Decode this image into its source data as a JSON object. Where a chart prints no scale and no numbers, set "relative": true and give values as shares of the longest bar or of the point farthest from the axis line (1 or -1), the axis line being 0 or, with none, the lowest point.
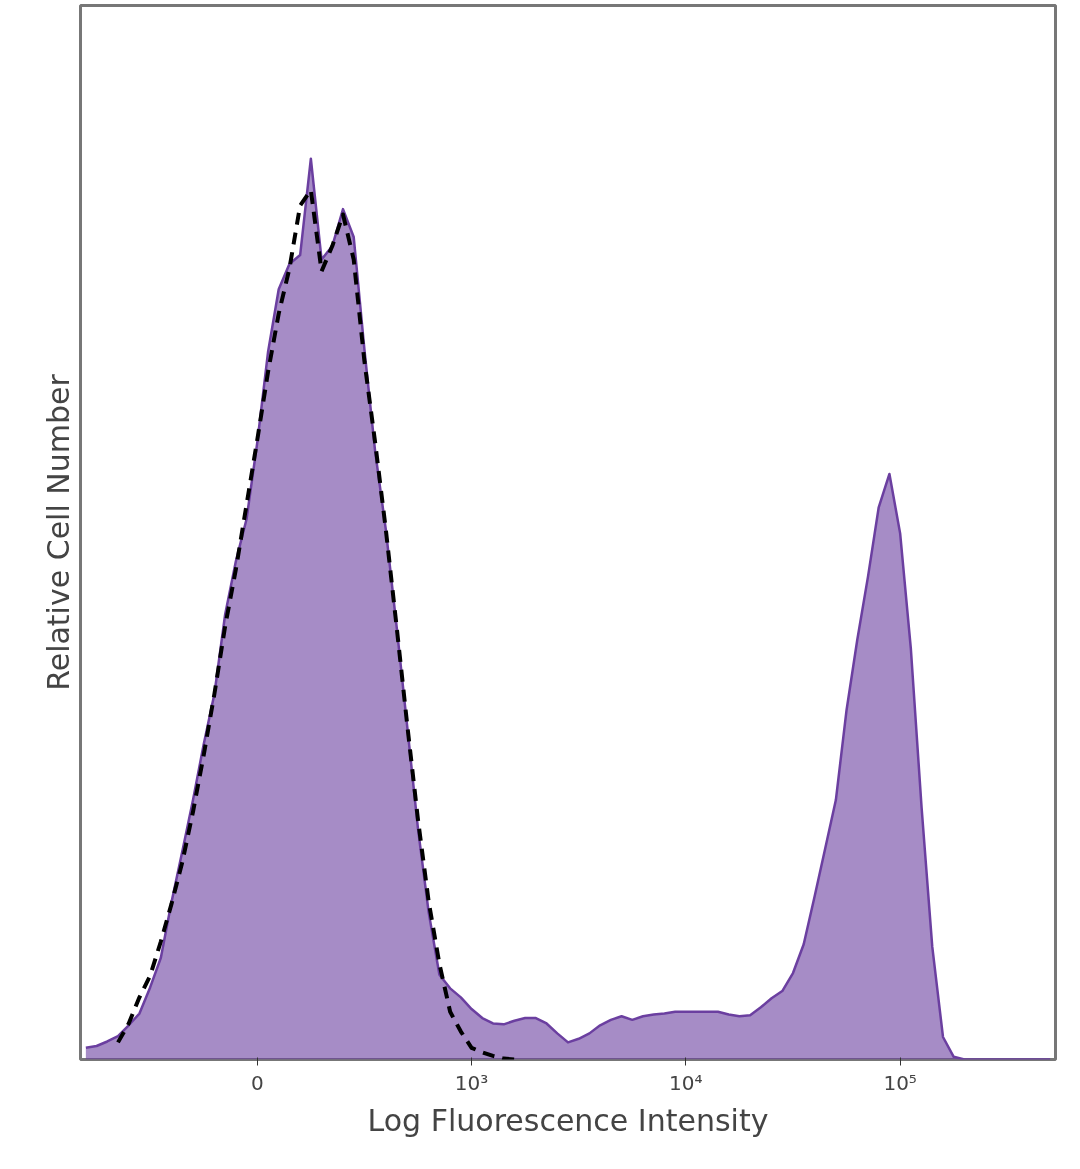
{
  "chart_data": {
    "type": "area",
    "xlabel": "Log Fluorescence Intensity",
    "ylabel": "Relative Cell Number",
    "relative": true,
    "grid": false,
    "categories": [
      null,
      null,
      null,
      null,
      null,
      null,
      null,
      null,
      null,
      null,
      null,
      null,
      null,
      null,
      null,
      null,
      "0",
      null,
      null,
      null,
      null,
      null,
      null,
      null,
      null,
      null,
      null,
      null,
      null,
      null,
      null,
      null,
      null,
      null,
      null,
      null,
      "10³",
      null,
      null,
      null,
      null,
      null,
      null,
      null,
      null,
      null,
      null,
      null,
      null,
      null,
      null,
      null,
      null,
      null,
      null,
      null,
      "10⁴",
      null,
      null,
      null,
      null,
      null,
      null,
      null,
      null,
      null,
      null,
      null,
      null,
      null,
      null,
      null,
      null,
      null,
      null,
      null,
      "10⁵",
      null,
      null,
      null,
      null,
      null,
      null,
      null,
      null,
      null,
      null,
      null,
      null,
      null,
      null
    ],
    "series": [
      {
        "color": "#6b3fa0",
        "line_style": "solid",
        "values": [
          0.013,
          0.015,
          0.02,
          0.026,
          0.038,
          0.051,
          0.08,
          0.113,
          0.175,
          0.231,
          0.288,
          0.35,
          0.406,
          0.494,
          0.553,
          0.6,
          0.685,
          0.785,
          0.855,
          0.883,
          0.893,
          1,
          0.888,
          0.903,
          0.944,
          0.913,
          0.788,
          0.675,
          0.588,
          0.481,
          0.369,
          0.256,
          0.163,
          0.094,
          0.079,
          0.069,
          0.056,
          0.046,
          0.04,
          0.039,
          0.043,
          0.046,
          0.046,
          0.04,
          0.029,
          0.019,
          0.023,
          0.029,
          0.038,
          0.044,
          0.048,
          0.044,
          0.048,
          0.05,
          0.051,
          0.053,
          0.053,
          0.053,
          0.053,
          0.053,
          0.05,
          0.048,
          0.049,
          0.058,
          0.068,
          0.076,
          0.096,
          0.128,
          0.18,
          0.234,
          0.288,
          0.388,
          0.466,
          0.536,
          0.613,
          0.65,
          0.584,
          0.456,
          0.28,
          0.125,
          0.025,
          0.003,
          0,
          0,
          0,
          0,
          0,
          0,
          0,
          0,
          0
        ]
      },
      {
        "type": "line",
        "color": "#000000",
        "line_style": "dashed",
        "values": [
          null,
          null,
          null,
          0.019,
          0.04,
          0.069,
          0.093,
          0.131,
          0.173,
          0.219,
          0.275,
          0.338,
          0.406,
          0.481,
          0.544,
          0.616,
          0.688,
          0.763,
          0.828,
          0.878,
          0.948,
          0.965,
          0.875,
          0.903,
          0.938,
          0.888,
          0.775,
          0.685,
          0.588,
          0.481,
          0.371,
          0.266,
          0.175,
          0.106,
          0.053,
          0.031,
          0.013,
          0.008,
          0.004,
          0.001,
          0,
          null,
          null,
          null,
          null,
          null,
          null,
          null,
          null,
          null,
          null,
          null,
          null,
          null,
          null,
          null,
          null,
          null,
          null,
          null,
          null,
          null,
          null,
          null,
          null,
          null,
          null,
          null,
          null,
          null,
          null,
          null,
          null,
          null,
          null,
          null,
          null,
          null,
          null,
          null,
          null,
          null,
          null,
          null,
          null,
          null,
          null,
          null,
          null,
          null,
          null
        ]
      }
    ]
  }
}
